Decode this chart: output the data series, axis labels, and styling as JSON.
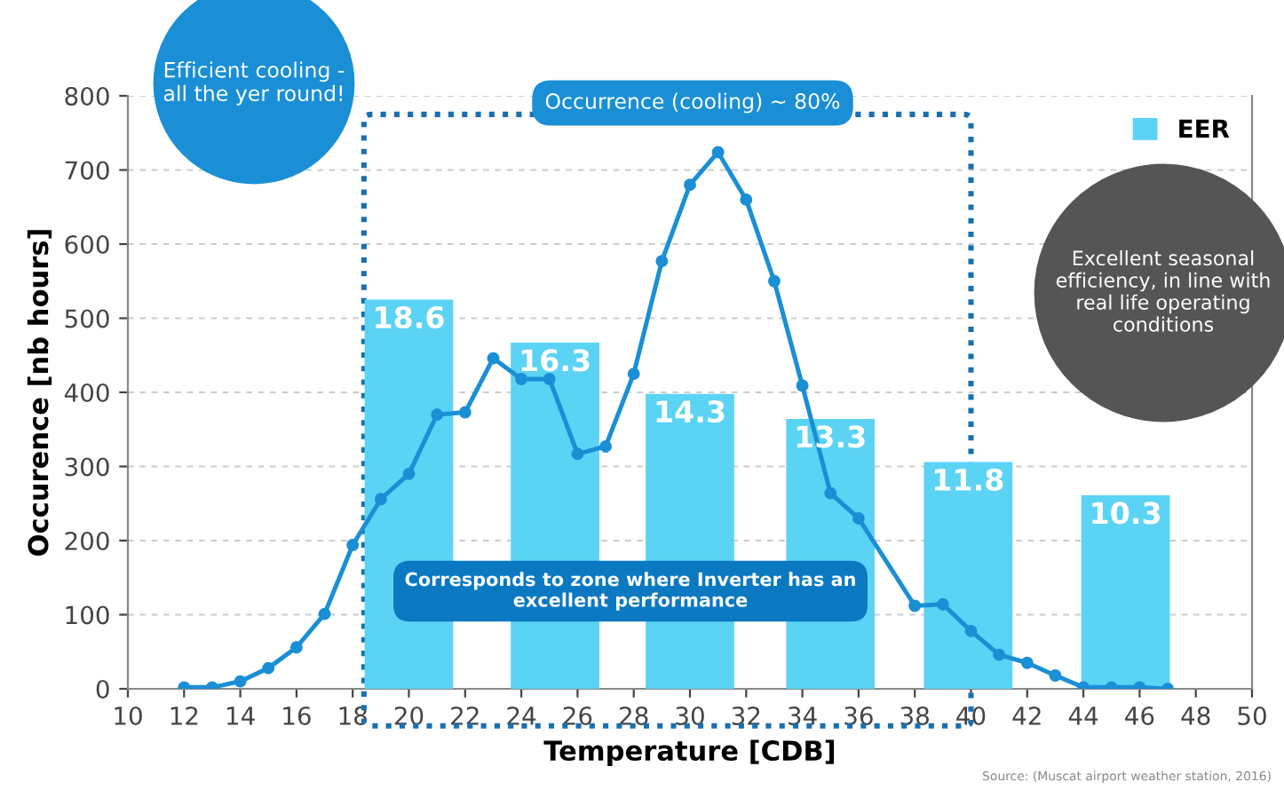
{
  "chart_data": {
    "type": "bar",
    "xlabel": "Temperature [CDB]",
    "ylabel": "Occurence [nb hours]",
    "xlim": [
      10,
      50
    ],
    "xticks": [
      10,
      12,
      14,
      16,
      18,
      20,
      22,
      24,
      26,
      28,
      30,
      32,
      34,
      36,
      38,
      40,
      42,
      44,
      46,
      48,
      50
    ],
    "ylim": [
      0,
      800
    ],
    "yticks": [
      0,
      100,
      200,
      300,
      400,
      500,
      600,
      700,
      800
    ],
    "grid": "y",
    "legend": "top right",
    "series": [
      {
        "type": "bar",
        "name": "EER",
        "color": "#5bd3f4",
        "x": [
          20,
          25.2,
          30,
          35,
          39.9,
          45.5
        ],
        "values": [
          525,
          467,
          398,
          364,
          306,
          261
        ]
      },
      {
        "type": "line",
        "color": "#1a8fd6",
        "marker": "circle",
        "x": [
          12,
          13,
          14,
          15,
          16,
          17,
          18,
          19,
          20,
          21,
          22,
          23,
          24,
          25,
          26,
          27,
          28,
          29,
          30,
          31,
          32,
          33,
          34,
          35,
          36,
          38,
          39,
          40,
          41,
          42,
          43,
          44,
          45,
          46,
          47
        ],
        "values": [
          2,
          2,
          10,
          28,
          56,
          101,
          194,
          256,
          290,
          370,
          373,
          446,
          418,
          418,
          317,
          327,
          425,
          577,
          680,
          724,
          660,
          550,
          409,
          264,
          230,
          112,
          114,
          78,
          46,
          35,
          18,
          2,
          2,
          2,
          0
        ]
      }
    ],
    "annotations": [
      "Efficient cooling - all the yer round!",
      "Occurrence (cooling) ~ 80%",
      "Corresponds to zone where Inverter has an excellent performance",
      "Excellent seasonal efficiency, in line with real life operating conditions",
      "Source: (Muscat airport weather station, 2016)",
      {
        "text": "18.6",
        "x": 20,
        "y": 525
      },
      {
        "text": "16.3",
        "x": 25.2,
        "y": 467
      },
      {
        "text": "14.3",
        "x": 30,
        "y": 398
      },
      {
        "text": "13.3",
        "x": 35,
        "y": 364
      },
      {
        "text": "11.8",
        "x": 39.9,
        "y": 306
      },
      {
        "text": "10.3",
        "x": 45.5,
        "y": 261
      }
    ]
  }
}
